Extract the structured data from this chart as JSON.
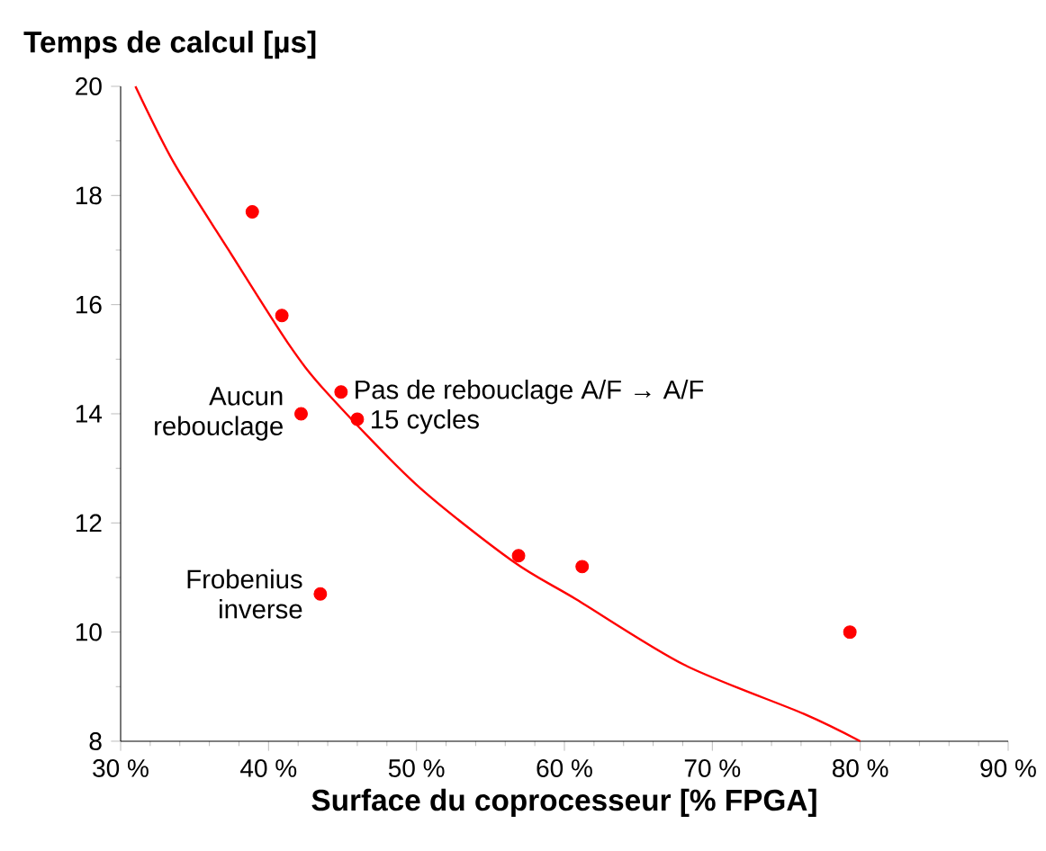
{
  "chart_data": {
    "type": "scatter",
    "xlabel": "Surface du coprocesseur [% FPGA]",
    "ylabel": "Temps de calcul [µs]",
    "xlim": [
      30,
      90
    ],
    "xticks": [
      {
        "value": 30,
        "label": "30 %"
      },
      {
        "value": 40,
        "label": "40 %"
      },
      {
        "value": 50,
        "label": "50 %"
      },
      {
        "value": 60,
        "label": "60 %"
      },
      {
        "value": 70,
        "label": "70 %"
      },
      {
        "value": 80,
        "label": "80 %"
      },
      {
        "value": 90,
        "label": "90 %"
      }
    ],
    "ylim": [
      8,
      20
    ],
    "yticks": [
      8,
      10,
      12,
      14,
      16,
      18,
      20
    ],
    "series": [
      {
        "color": "#ff0000",
        "marker": "circle",
        "x": [
          38.9,
          40.9,
          44.9,
          42.2,
          46.0,
          43.5,
          56.9,
          61.2,
          79.3
        ],
        "values": [
          17.7,
          15.8,
          14.4,
          14.0,
          13.9,
          10.7,
          11.4,
          11.2,
          10.0
        ]
      },
      {
        "type": "line",
        "color": "#ff0000",
        "marker": "none",
        "line_style": "solid",
        "x": [
          31.0,
          33.6,
          37.3,
          41.3,
          43.9,
          50.0,
          56.5,
          60.8,
          68.1,
          76.2,
          80.0
        ],
        "values": [
          20.0,
          18.6,
          17.0,
          15.3,
          14.4,
          12.7,
          11.3,
          10.6,
          9.4,
          8.5,
          8.0
        ]
      }
    ],
    "annotations": [
      {
        "text": "Aucun rebouclage",
        "x": 42.2,
        "y": 14.0
      },
      {
        "text": "Pas de rebouclage A/F → A/F",
        "x": 44.9,
        "y": 14.4
      },
      {
        "text": "15 cycles",
        "x": 46.0,
        "y": 13.9
      },
      {
        "text": "Frobenius inverse",
        "x": 43.5,
        "y": 10.7
      }
    ]
  }
}
